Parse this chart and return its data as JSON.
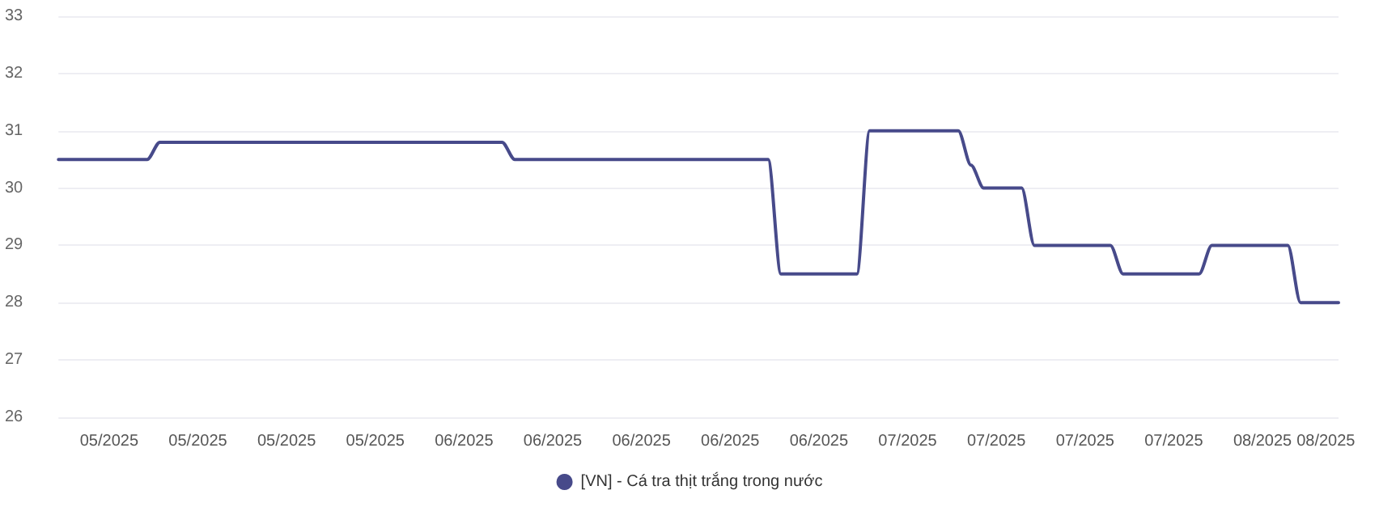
{
  "chart_data": {
    "type": "line",
    "categories": [
      null,
      null,
      null,
      null,
      "05/2025",
      null,
      null,
      null,
      null,
      null,
      null,
      "05/2025",
      null,
      null,
      null,
      null,
      null,
      null,
      "05/2025",
      null,
      null,
      null,
      null,
      null,
      null,
      "05/2025",
      null,
      null,
      null,
      null,
      null,
      null,
      "06/2025",
      null,
      null,
      null,
      null,
      null,
      null,
      "06/2025",
      null,
      null,
      null,
      null,
      null,
      null,
      "06/2025",
      null,
      null,
      null,
      null,
      null,
      null,
      "06/2025",
      null,
      null,
      null,
      null,
      null,
      null,
      "06/2025",
      null,
      null,
      null,
      null,
      null,
      null,
      "07/2025",
      null,
      null,
      null,
      null,
      null,
      null,
      "07/2025",
      null,
      null,
      null,
      null,
      null,
      null,
      "07/2025",
      null,
      null,
      null,
      null,
      null,
      null,
      "07/2025",
      null,
      null,
      null,
      null,
      null,
      null,
      "08/2025",
      null,
      null,
      null,
      null,
      "08/2025",
      null
    ],
    "series": [
      {
        "name": "[VN] - Cá tra thịt trắng trong nước",
        "color": "#474a8a",
        "values": [
          30.5,
          30.5,
          30.5,
          30.5,
          30.5,
          30.5,
          30.5,
          30.5,
          30.8,
          30.8,
          30.8,
          30.8,
          30.8,
          30.8,
          30.8,
          30.8,
          30.8,
          30.8,
          30.8,
          30.8,
          30.8,
          30.8,
          30.8,
          30.8,
          30.8,
          30.8,
          30.8,
          30.8,
          30.8,
          30.8,
          30.8,
          30.8,
          30.8,
          30.8,
          30.8,
          30.8,
          30.5,
          30.5,
          30.5,
          30.5,
          30.5,
          30.5,
          30.5,
          30.5,
          30.5,
          30.5,
          30.5,
          30.5,
          30.5,
          30.5,
          30.5,
          30.5,
          30.5,
          30.5,
          30.5,
          30.5,
          30.5,
          28.5,
          28.5,
          28.5,
          28.5,
          28.5,
          28.5,
          28.5,
          31,
          31,
          31,
          31,
          31,
          31,
          31,
          31,
          30.4,
          30,
          30,
          30,
          30,
          29,
          29,
          29,
          29,
          29,
          29,
          29,
          28.5,
          28.5,
          28.5,
          28.5,
          28.5,
          28.5,
          28.5,
          29,
          29,
          29,
          29,
          29,
          29,
          29,
          28,
          28,
          28,
          28
        ]
      }
    ],
    "ylim": [
      26,
      33
    ],
    "yticks": [
      26,
      27,
      28,
      29,
      30,
      31,
      32,
      33
    ],
    "grid": "y",
    "legend": "bottom",
    "marker": "none",
    "line_style": "solid"
  }
}
